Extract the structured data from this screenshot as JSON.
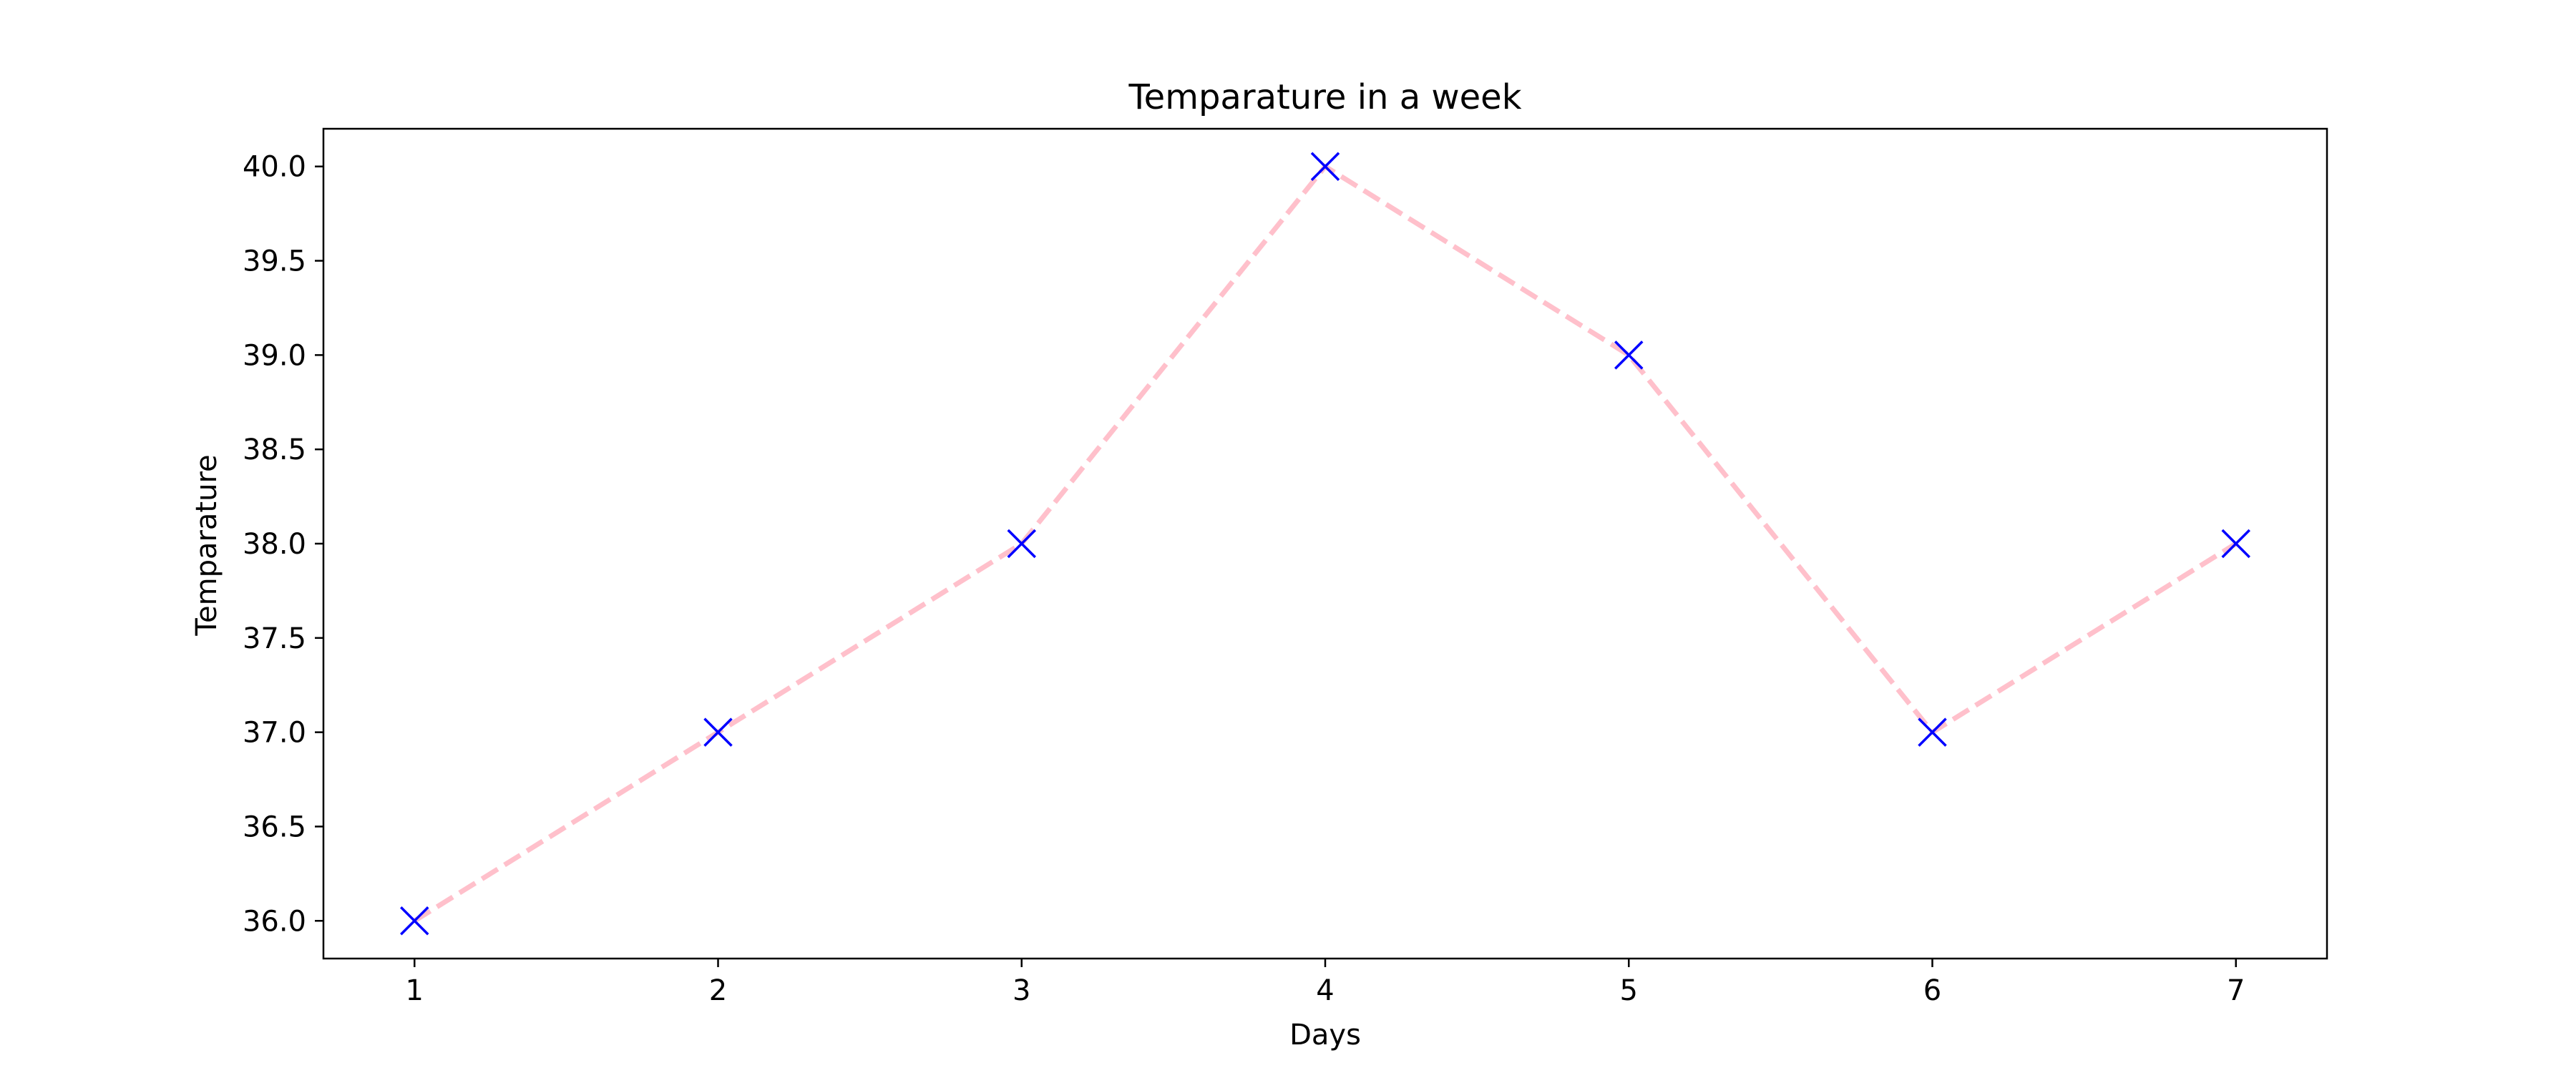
{
  "chart_data": {
    "type": "line",
    "title": "Temparature in a week",
    "xlabel": "Days",
    "ylabel": "Temparature",
    "x": [
      1,
      2,
      3,
      4,
      5,
      6,
      7
    ],
    "series": [
      {
        "values": [
          36.0,
          37.0,
          38.0,
          40.0,
          39.0,
          37.0,
          38.0
        ],
        "line_color": "#ffc0cb",
        "line_style": "dashed",
        "marker": "x",
        "marker_color": "#0000ff"
      }
    ],
    "xlim": [
      0.7,
      7.3
    ],
    "ylim": [
      35.8,
      40.2
    ],
    "xticks": [
      1,
      2,
      3,
      4,
      5,
      6,
      7
    ],
    "xtick_labels": [
      "1",
      "2",
      "3",
      "4",
      "5",
      "6",
      "7"
    ],
    "yticks": [
      36.0,
      36.5,
      37.0,
      37.5,
      38.0,
      38.5,
      39.0,
      39.5,
      40.0
    ],
    "ytick_labels": [
      "36.0",
      "36.5",
      "37.0",
      "37.5",
      "38.0",
      "38.5",
      "39.0",
      "39.5",
      "40.0"
    ],
    "grid": false,
    "legend": "none"
  }
}
